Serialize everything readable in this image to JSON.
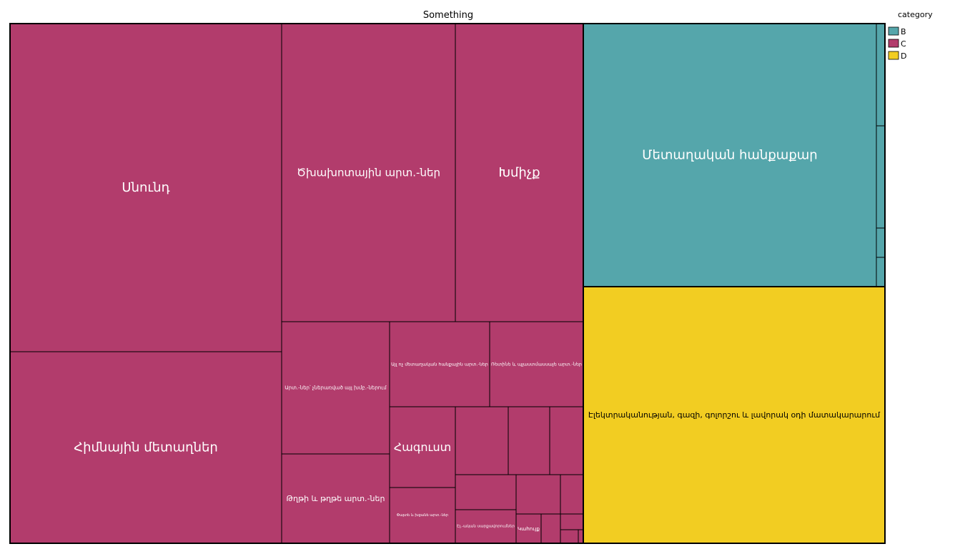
{
  "colors": {
    "B": "#55a6ab",
    "C": "#b23c6c",
    "D": "#f2cd22",
    "border": "#000000",
    "text_light": "#ffffff",
    "text_dark": "#000000"
  },
  "chart_data": {
    "type": "treemap",
    "title": "Something",
    "legend": {
      "title": "category",
      "position": "top-right",
      "entries": [
        "B",
        "C",
        "D"
      ]
    },
    "tiles": [
      {
        "category": "C",
        "label": "Սնունդ",
        "value": 17.0
      },
      {
        "category": "C",
        "label": "Հիմնային մետաղներ",
        "value": 13.1
      },
      {
        "category": "C",
        "label": "Ծխախոտային արտ.-ներ",
        "value": 9.8
      },
      {
        "category": "C",
        "label": "Խմիչք",
        "value": 7.3
      },
      {
        "category": "C",
        "label": "Արտ.-ներ՝ չներառված այլ խմբ.-ներում",
        "value": 2.7
      },
      {
        "category": "C",
        "label": "Թղթի և թղթե արտ.-ներ",
        "value": 2.0
      },
      {
        "category": "C",
        "label": "Այլ ոչ մետաղական հանքային արտ.-ներ",
        "value": 1.6
      },
      {
        "category": "C",
        "label": "Ռետինե և պլաստմասսայե արտ.-ներ",
        "value": 1.5
      },
      {
        "category": "C",
        "label": "Հագուստ",
        "value": 1.3
      },
      {
        "category": "C",
        "label": "Փայտե և խցանե արտ.-ներ",
        "value": 0.9
      },
      {
        "category": "C",
        "label": "",
        "value": 0.8
      },
      {
        "category": "C",
        "label": "",
        "value": 0.6
      },
      {
        "category": "C",
        "label": "",
        "value": 0.5
      },
      {
        "category": "C",
        "label": "",
        "value": 0.5
      },
      {
        "category": "C",
        "label": "",
        "value": 0.4
      },
      {
        "category": "C",
        "label": "",
        "value": 0.3
      },
      {
        "category": "C",
        "label": "Էլ.-ական սարքավորումներ",
        "value": 0.4
      },
      {
        "category": "C",
        "label": "Կահույք",
        "value": 0.2
      },
      {
        "category": "C",
        "label": "",
        "value": 0.15
      },
      {
        "category": "C",
        "label": "",
        "value": 0.15
      },
      {
        "category": "C",
        "label": "",
        "value": 0.1
      },
      {
        "category": "C",
        "label": "",
        "value": 0.05
      },
      {
        "category": "B",
        "label": "Մետաղական հանքաքար",
        "value": 18.5
      },
      {
        "category": "B",
        "label": "",
        "value": 0.2
      },
      {
        "category": "B",
        "label": "",
        "value": 0.15
      },
      {
        "category": "B",
        "label": "",
        "value": 0.05
      },
      {
        "category": "B",
        "label": "",
        "value": 0.05
      },
      {
        "category": "D",
        "label": "Էլեկտրականության, գազի, գոլորշու և լավորակ օդի մատակարարում",
        "value": 19.0
      }
    ]
  }
}
